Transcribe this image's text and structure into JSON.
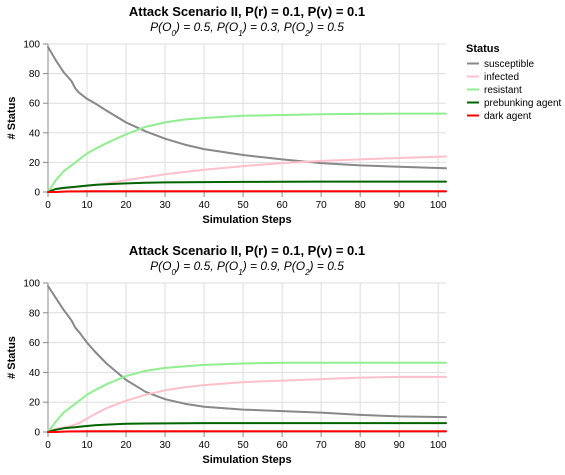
{
  "legend": {
    "title": "Status",
    "items": [
      {
        "label": "susceptible",
        "color": "#888888"
      },
      {
        "label": "infected",
        "color": "#ffc0cb"
      },
      {
        "label": "resistant",
        "color": "#90ee90"
      },
      {
        "label": "prebunking agent",
        "color": "#006400"
      },
      {
        "label": "dark agent",
        "color": "#ff0000"
      }
    ]
  },
  "chart_data": [
    {
      "type": "line",
      "title": "Attack Scenario II, P(r) = 0.1, P(v) = 0.1",
      "subtitle": {
        "parts": [
          {
            "t": "P(O"
          },
          {
            "t": "0",
            "sub": true
          },
          {
            "t": ") = 0.5, P(O"
          },
          {
            "t": "1",
            "sub": true
          },
          {
            "t": ") = 0.3, P(O"
          },
          {
            "t": "2",
            "sub": true
          },
          {
            "t": ") = 0.5"
          }
        ]
      },
      "xlabel": "Simulation Steps",
      "ylabel": "# Status",
      "xlim": [
        0,
        102
      ],
      "ylim": [
        0,
        100
      ],
      "xticks": [
        0,
        10,
        20,
        30,
        40,
        50,
        60,
        70,
        80,
        90,
        100
      ],
      "yticks": [
        0,
        20,
        40,
        60,
        80,
        100
      ],
      "grid": true,
      "x": [
        0,
        2,
        4,
        6,
        7,
        8,
        10,
        12,
        15,
        20,
        25,
        30,
        35,
        40,
        50,
        60,
        70,
        80,
        90,
        102
      ],
      "series": [
        {
          "name": "susceptible",
          "values": [
            98,
            89,
            81,
            75,
            70,
            67,
            63,
            60,
            55,
            47,
            41,
            36,
            32,
            29,
            25,
            22,
            19.5,
            18,
            17,
            16
          ]
        },
        {
          "name": "infected",
          "values": [
            1,
            2,
            2.5,
            3,
            3.3,
            3.6,
            4.2,
            4.8,
            5.8,
            8,
            10,
            12,
            13.5,
            15,
            17.5,
            19.5,
            21,
            22,
            23,
            24
          ]
        },
        {
          "name": "resistant",
          "values": [
            0,
            8,
            14,
            18,
            20,
            22,
            26,
            29,
            33,
            39,
            44,
            47,
            49,
            50,
            51.5,
            52,
            52.5,
            52.8,
            53,
            53
          ]
        },
        {
          "name": "prebunking agent",
          "values": [
            0,
            2,
            2.8,
            3.3,
            3.5,
            3.8,
            4.3,
            4.8,
            5.2,
            5.8,
            6.2,
            6.5,
            6.6,
            6.7,
            6.8,
            6.9,
            7,
            7,
            7,
            7
          ]
        },
        {
          "name": "dark agent",
          "values": [
            0,
            0,
            0.3,
            0.4,
            0.4,
            0.4,
            0.5,
            0.5,
            0.5,
            0.5,
            0.5,
            0.5,
            0.5,
            0.5,
            0.5,
            0.5,
            0.5,
            0.5,
            0.5,
            0.5
          ]
        }
      ]
    },
    {
      "type": "line",
      "title": "Attack Scenario II, P(r) = 0.1, P(v) = 0.1",
      "subtitle": {
        "parts": [
          {
            "t": "P(O"
          },
          {
            "t": "0",
            "sub": true
          },
          {
            "t": ") = 0.5, P(O"
          },
          {
            "t": "1",
            "sub": true
          },
          {
            "t": ") = 0.9, P(O"
          },
          {
            "t": "2",
            "sub": true
          },
          {
            "t": ") = 0.5"
          }
        ]
      },
      "xlabel": "Simulation Steps",
      "ylabel": "# Status",
      "xlim": [
        0,
        102
      ],
      "ylim": [
        0,
        100
      ],
      "xticks": [
        0,
        10,
        20,
        30,
        40,
        50,
        60,
        70,
        80,
        90,
        100
      ],
      "yticks": [
        0,
        20,
        40,
        60,
        80,
        100
      ],
      "grid": true,
      "x": [
        0,
        2,
        4,
        6,
        7,
        8,
        10,
        12,
        15,
        20,
        25,
        30,
        35,
        40,
        50,
        60,
        70,
        80,
        90,
        102
      ],
      "series": [
        {
          "name": "susceptible",
          "values": [
            98,
            90,
            82,
            75,
            70,
            67,
            60,
            54,
            46,
            35,
            27,
            22,
            19,
            17,
            15,
            14,
            13,
            11.5,
            10.5,
            10
          ]
        },
        {
          "name": "infected",
          "values": [
            1,
            2,
            3,
            4,
            5,
            6,
            9,
            12,
            16,
            21,
            25,
            28,
            30,
            31.5,
            33.5,
            34.5,
            35.5,
            36.5,
            37,
            37
          ]
        },
        {
          "name": "resistant",
          "values": [
            0,
            7,
            13,
            17,
            19,
            21,
            25,
            28,
            32,
            37.5,
            41,
            43,
            44,
            45,
            46,
            46.5,
            46.5,
            46.5,
            46.5,
            46.5
          ]
        },
        {
          "name": "prebunking agent",
          "values": [
            0,
            1.5,
            2.5,
            3,
            3.2,
            3.5,
            4,
            4.5,
            5,
            5.5,
            5.7,
            5.8,
            5.9,
            6,
            6,
            6,
            6,
            6,
            6,
            6
          ]
        },
        {
          "name": "dark agent",
          "values": [
            0,
            0,
            0.3,
            0.4,
            0.4,
            0.4,
            0.5,
            0.5,
            0.5,
            0.5,
            0.5,
            0.5,
            0.5,
            0.5,
            0.5,
            0.5,
            0.5,
            0.5,
            0.5,
            0.5
          ]
        }
      ]
    }
  ]
}
